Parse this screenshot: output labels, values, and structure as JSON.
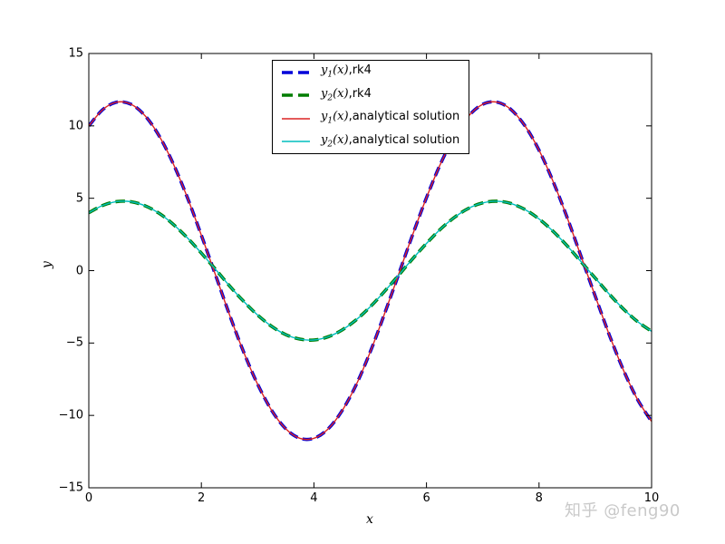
{
  "figure": {
    "background": "#ffffff"
  },
  "watermark": {
    "text": "知乎 @feng90",
    "color": "#c9c9c9"
  },
  "axis": {
    "xlabel": "x",
    "ylabel": "y"
  },
  "legend": {
    "position": "upper center",
    "items": [
      {
        "var": "y",
        "sub": "1",
        "args": "(x)",
        "rest": ",rk4"
      },
      {
        "var": "y",
        "sub": "2",
        "args": "(x)",
        "rest": ",rk4"
      },
      {
        "var": "y",
        "sub": "1",
        "args": "(x)",
        "rest": ",analytical solution"
      },
      {
        "var": "y",
        "sub": "2",
        "args": "(x)",
        "rest": ",analytical solution"
      }
    ]
  },
  "chart_data": {
    "type": "line",
    "title": "",
    "xlabel": "x",
    "ylabel": "y",
    "xlim": [
      0,
      10
    ],
    "ylim": [
      -15,
      15
    ],
    "xticks": [
      0,
      2,
      4,
      6,
      8,
      10
    ],
    "xtick_labels": [
      "0",
      "2",
      "4",
      "6",
      "8",
      "10"
    ],
    "yticks": [
      -15,
      -10,
      -5,
      0,
      5,
      10,
      15
    ],
    "ytick_labels": [
      "−15",
      "−10",
      "−5",
      "0",
      "5",
      "10",
      "15"
    ],
    "grid": false,
    "legend_position": "upper center",
    "x": [
      0,
      0.25,
      0.5,
      0.75,
      1,
      1.25,
      1.5,
      1.75,
      2,
      2.25,
      2.5,
      2.75,
      3,
      3.25,
      3.5,
      3.75,
      4,
      4.25,
      4.5,
      4.75,
      5,
      5.25,
      5.5,
      5.75,
      6,
      6.25,
      6.5,
      6.75,
      7,
      7.25,
      7.5,
      7.75,
      8,
      8.25,
      8.5,
      8.75,
      9,
      9.25,
      9.5,
      9.75,
      10
    ],
    "series": [
      {
        "id": "y1-rk4",
        "name": "y1(x),rk4",
        "color": "#0000d9",
        "linestyle": "dashed",
        "linewidth": 3.6,
        "values": [
          10.0,
          11.13,
          11.64,
          11.49,
          10.7,
          9.31,
          7.39,
          5.06,
          2.44,
          -0.28,
          -3.05,
          -5.61,
          -7.85,
          -9.66,
          -10.93,
          -11.58,
          -11.58,
          -10.94,
          -9.68,
          -7.89,
          -5.62,
          -3.03,
          -0.31,
          2.44,
          5.04,
          7.38,
          9.29,
          10.69,
          11.49,
          11.64,
          11.13,
          10.0,
          8.32,
          6.16,
          3.66,
          0.95,
          -1.78,
          -4.45,
          -6.87,
          -8.9,
          -10.42
        ]
      },
      {
        "id": "y2-rk4",
        "name": "y2(x),rk4",
        "color": "#007d00",
        "linestyle": "dashed",
        "linewidth": 3.6,
        "values": [
          4.0,
          4.51,
          4.77,
          4.76,
          4.48,
          3.96,
          3.2,
          2.27,
          1.21,
          0.1,
          -1.05,
          -2.12,
          -3.07,
          -3.85,
          -4.42,
          -4.73,
          -4.79,
          -4.57,
          -4.1,
          -3.4,
          -2.5,
          -1.45,
          -0.34,
          0.8,
          1.88,
          2.87,
          3.69,
          4.31,
          4.68,
          4.8,
          4.64,
          4.22,
          3.57,
          2.72,
          1.71,
          0.6,
          -0.52,
          -1.63,
          -2.65,
          -3.52,
          -4.19
        ]
      },
      {
        "id": "y1-analytical",
        "name": "y1(x),analytical solution",
        "color": "#dc2323",
        "linestyle": "solid",
        "linewidth": 1.4,
        "values": [
          10.0,
          11.13,
          11.64,
          11.49,
          10.7,
          9.31,
          7.39,
          5.06,
          2.44,
          -0.28,
          -3.05,
          -5.61,
          -7.85,
          -9.66,
          -10.93,
          -11.58,
          -11.58,
          -10.94,
          -9.68,
          -7.89,
          -5.62,
          -3.03,
          -0.31,
          2.44,
          5.04,
          7.38,
          9.29,
          10.69,
          11.49,
          11.64,
          11.13,
          10.0,
          8.32,
          6.16,
          3.66,
          0.95,
          -1.78,
          -4.45,
          -6.87,
          -8.9,
          -10.42
        ]
      },
      {
        "id": "y2-analytical",
        "name": "y2(x),analytical solution",
        "color": "#00bdbd",
        "linestyle": "solid",
        "linewidth": 1.4,
        "values": [
          4.0,
          4.51,
          4.77,
          4.76,
          4.48,
          3.96,
          3.2,
          2.27,
          1.21,
          0.1,
          -1.05,
          -2.12,
          -3.07,
          -3.85,
          -4.42,
          -4.73,
          -4.79,
          -4.57,
          -4.1,
          -3.4,
          -2.5,
          -1.45,
          -0.34,
          0.8,
          1.88,
          2.87,
          3.69,
          4.31,
          4.68,
          4.8,
          4.64,
          4.22,
          3.57,
          2.72,
          1.71,
          0.6,
          -0.52,
          -1.63,
          -2.65,
          -3.52,
          -4.19
        ]
      }
    ]
  }
}
